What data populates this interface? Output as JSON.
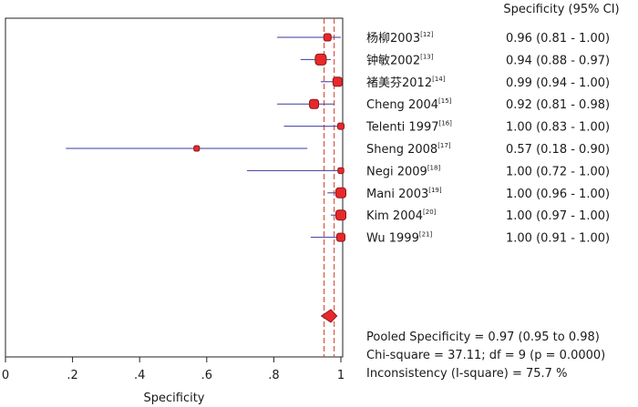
{
  "chart_data": {
    "type": "forest",
    "title": "",
    "xlabel": "Specificity",
    "xlim": [
      0,
      1
    ],
    "xticks": [
      "0",
      ".2",
      ".4",
      ".6",
      ".8",
      "1"
    ],
    "column_header": "Specificity (95% CI)",
    "studies": [
      {
        "name": "杨柳2003",
        "ref": "[12]",
        "estimate": 0.96,
        "lower": 0.81,
        "upper": 1.0,
        "ci_text": "0.96 (0.81 - 1.00)",
        "weight": 2
      },
      {
        "name": "钟敏2002",
        "ref": "[13]",
        "estimate": 0.94,
        "lower": 0.88,
        "upper": 0.97,
        "ci_text": "0.94 (0.88 - 0.97)",
        "weight": 4
      },
      {
        "name": "褚美芬2012",
        "ref": "[14]",
        "estimate": 0.99,
        "lower": 0.94,
        "upper": 1.0,
        "ci_text": "0.99 (0.94 - 1.00)",
        "weight": 3
      },
      {
        "name": "Cheng 2004",
        "ref": "[15]",
        "estimate": 0.92,
        "lower": 0.81,
        "upper": 0.98,
        "ci_text": "0.92 (0.81 - 0.98)",
        "weight": 3
      },
      {
        "name": "Telenti 1997",
        "ref": "[16]",
        "estimate": 1.0,
        "lower": 0.83,
        "upper": 1.0,
        "ci_text": "1.00 (0.83 - 1.00)",
        "weight": 1.5
      },
      {
        "name": "Sheng 2008",
        "ref": "[17]",
        "estimate": 0.57,
        "lower": 0.18,
        "upper": 0.9,
        "ci_text": "0.57 (0.18 - 0.90)",
        "weight": 1
      },
      {
        "name": "Negi 2009",
        "ref": "[18]",
        "estimate": 1.0,
        "lower": 0.72,
        "upper": 1.0,
        "ci_text": "1.00 (0.72 - 1.00)",
        "weight": 1.2
      },
      {
        "name": "Mani 2003",
        "ref": "[19]",
        "estimate": 1.0,
        "lower": 0.96,
        "upper": 1.0,
        "ci_text": "1.00 (0.96 - 1.00)",
        "weight": 3.5
      },
      {
        "name": "Kim 2004",
        "ref": "[20]",
        "estimate": 1.0,
        "lower": 0.97,
        "upper": 1.0,
        "ci_text": "1.00 (0.97 - 1.00)",
        "weight": 3.5
      },
      {
        "name": "Wu 1999",
        "ref": "[21]",
        "estimate": 1.0,
        "lower": 0.91,
        "upper": 1.0,
        "ci_text": "1.00 (0.91 - 1.00)",
        "weight": 2.5
      }
    ],
    "pooled": {
      "estimate": 0.97,
      "lower": 0.95,
      "upper": 0.98
    },
    "stats": [
      "Pooled Specificity = 0.97 (0.95 to 0.98)",
      "Chi-square = 37.11; df = 9 (p = 0.0000)",
      "Inconsistency (I-square) = 75.7 %"
    ],
    "colors": {
      "marker": "#e8282b",
      "marker_edge": "#8a1a1a",
      "ci_line": "#3a3aa0",
      "pooled_line": "#d23a2a",
      "axis": "#222222"
    }
  }
}
